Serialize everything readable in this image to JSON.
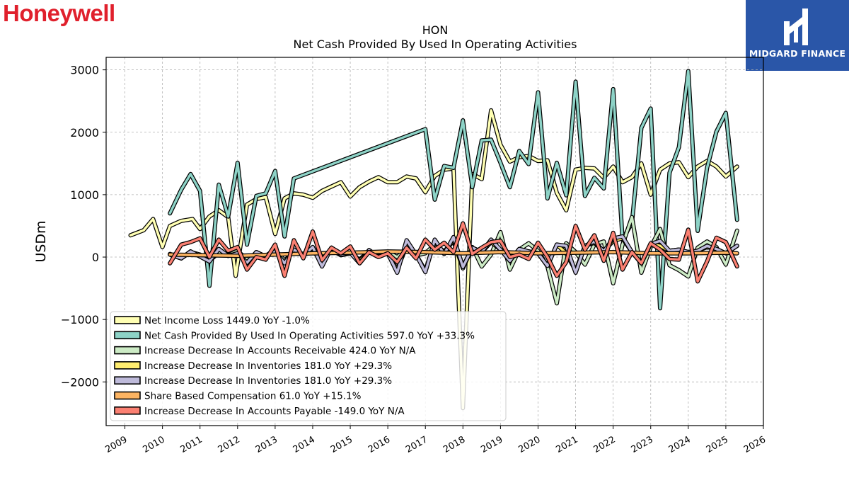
{
  "brand": {
    "name": "Honeywell"
  },
  "logo": {
    "text": "MIDGARD FINANCE",
    "color": "#2a56a8"
  },
  "chart_data": {
    "type": "line",
    "title": "HON",
    "subtitle": "Net Cash Provided By Used In Operating Activities",
    "ylabel": "USDm",
    "xlabel": "",
    "ylim": [
      -2700,
      3200
    ],
    "xlim": [
      2008.5,
      2026.0
    ],
    "yticks": [
      3000,
      2000,
      1000,
      0,
      -1000,
      -2000
    ],
    "ytick_labels": [
      "3000",
      "2000",
      "1000",
      "0",
      "−1000",
      "−2000"
    ],
    "xticks": [
      2009,
      2010,
      2011,
      2012,
      2013,
      2014,
      2015,
      2016,
      2017,
      2018,
      2019,
      2020,
      2021,
      2022,
      2023,
      2024,
      2025,
      2026
    ],
    "xtick_labels": [
      "2009",
      "2010",
      "2011",
      "2012",
      "2013",
      "2014",
      "2015",
      "2016",
      "2017",
      "2018",
      "2019",
      "2020",
      "2021",
      "2022",
      "2023",
      "2024",
      "2025",
      "2026"
    ],
    "grid": true,
    "legend_position": "lower-left",
    "series": [
      {
        "name": "Net Income Loss",
        "legend_label": "Net Income Loss  1449.0 YoY -1.0%",
        "color": "#ffffb3",
        "x": [
          2009.15,
          2009.5,
          2009.75,
          2010.0,
          2010.2,
          2010.5,
          2010.8,
          2011.0,
          2011.25,
          2011.5,
          2011.75,
          2011.95,
          2012.25,
          2012.5,
          2012.75,
          2013.0,
          2013.25,
          2013.5,
          2013.75,
          2014.0,
          2014.25,
          2014.5,
          2014.75,
          2015.0,
          2015.25,
          2015.5,
          2015.75,
          2016.0,
          2016.25,
          2016.5,
          2016.75,
          2017.0,
          2017.25,
          2017.5,
          2017.75,
          2018.0,
          2018.25,
          2018.5,
          2018.75,
          2019.0,
          2019.25,
          2019.5,
          2019.75,
          2020.0,
          2020.25,
          2020.5,
          2020.75,
          2021.0,
          2021.25,
          2021.5,
          2021.75,
          2022.0,
          2022.25,
          2022.5,
          2022.75,
          2023.0,
          2023.25,
          2023.5,
          2023.75,
          2024.0,
          2024.25,
          2024.5,
          2024.75,
          2025.0,
          2025.3
        ],
        "y": [
          350,
          430,
          610,
          160,
          500,
          580,
          610,
          450,
          650,
          750,
          640,
          -300,
          840,
          930,
          960,
          370,
          940,
          1020,
          1000,
          950,
          1060,
          1130,
          1200,
          970,
          1120,
          1210,
          1280,
          1200,
          1200,
          1290,
          1260,
          1040,
          1300,
          1400,
          1420,
          -2420,
          1330,
          1250,
          2350,
          1800,
          1530,
          1600,
          1620,
          1540,
          1550,
          1030,
          750,
          1400,
          1430,
          1420,
          1270,
          1450,
          1200,
          1280,
          1500,
          1000,
          1400,
          1500,
          1520,
          1280,
          1450,
          1540,
          1450,
          1290,
          1449
        ]
      },
      {
        "name": "Net Cash Provided By Used In Operating Activities",
        "legend_label": "Net Cash Provided By Used In Operating Activities  597.0 YoY +33.3%",
        "color": "#8dd3c7",
        "x": [
          2010.2,
          2010.5,
          2010.75,
          2011.0,
          2011.25,
          2011.5,
          2011.75,
          2012.0,
          2012.25,
          2012.5,
          2012.75,
          2013.0,
          2013.25,
          2013.5,
          2017.0,
          2017.25,
          2017.5,
          2017.75,
          2018.0,
          2018.25,
          2018.5,
          2018.75,
          2019.0,
          2019.25,
          2019.5,
          2019.75,
          2020.0,
          2020.25,
          2020.5,
          2020.75,
          2021.0,
          2021.25,
          2021.5,
          2021.75,
          2022.0,
          2022.25,
          2022.5,
          2022.75,
          2023.0,
          2023.25,
          2023.5,
          2023.75,
          2024.0,
          2024.25,
          2024.5,
          2024.75,
          2025.0,
          2025.3
        ],
        "y": [
          700,
          1080,
          1330,
          1060,
          -460,
          1160,
          650,
          1510,
          200,
          980,
          1020,
          1380,
          330,
          1260,
          2050,
          920,
          1460,
          1430,
          2190,
          1120,
          1870,
          1880,
          1510,
          1120,
          1700,
          1490,
          2640,
          940,
          1510,
          990,
          2810,
          980,
          1270,
          1100,
          2690,
          280,
          550,
          2070,
          2380,
          -820,
          1350,
          1760,
          2980,
          420,
          1430,
          2010,
          2310,
          597
        ]
      },
      {
        "name": "Increase Decrease In Accounts Receivable",
        "legend_label": "Increase Decrease In Accounts Receivable  424.0 YoY N/A",
        "color": "#ccebc5",
        "x": [
          2010.2,
          2010.5,
          2010.75,
          2011.0,
          2011.25,
          2011.5,
          2011.75,
          2012.0,
          2012.25,
          2012.5,
          2012.75,
          2013.0,
          2013.25,
          2013.5,
          2013.75,
          2014.0,
          2014.25,
          2014.5,
          2014.75,
          2015.0,
          2015.25,
          2015.5,
          2015.75,
          2016.0,
          2016.25,
          2016.5,
          2016.75,
          2017.0,
          2017.25,
          2017.5,
          2017.75,
          2018.0,
          2018.25,
          2018.5,
          2018.75,
          2019.0,
          2019.25,
          2019.5,
          2019.75,
          2020.0,
          2020.25,
          2020.5,
          2020.75,
          2021.0,
          2021.25,
          2021.5,
          2021.75,
          2022.0,
          2022.25,
          2022.5,
          2022.75,
          2023.0,
          2023.25,
          2023.5,
          2023.75,
          2024.0,
          2024.25,
          2024.5,
          2024.75,
          2025.0,
          2025.3
        ],
        "y": [
          50,
          -20,
          80,
          40,
          -60,
          70,
          30,
          100,
          -40,
          60,
          20,
          120,
          -60,
          90,
          40,
          80,
          -20,
          110,
          30,
          60,
          -40,
          100,
          20,
          80,
          0,
          120,
          30,
          60,
          200,
          90,
          260,
          -180,
          160,
          -150,
          40,
          400,
          -200,
          120,
          220,
          100,
          -150,
          -740,
          220,
          80,
          -120,
          200,
          250,
          -420,
          200,
          640,
          -250,
          160,
          450,
          -130,
          -210,
          -310,
          150,
          250,
          160,
          -120,
          424
        ]
      },
      {
        "name": "Increase Decrease In Inventories",
        "legend_label": "Increase Decrease In Inventories  181.0 YoY +29.3%",
        "color": "#ffed6f",
        "x": [
          2010.2,
          2010.5,
          2010.75,
          2011.0,
          2011.25,
          2011.5,
          2011.75,
          2012.0,
          2012.25,
          2012.5,
          2012.75,
          2013.0,
          2013.25,
          2013.5,
          2013.75,
          2014.0,
          2014.25,
          2014.5,
          2014.75,
          2015.0,
          2015.25,
          2015.5,
          2015.75,
          2016.0,
          2016.25,
          2016.5,
          2016.75,
          2017.0,
          2017.25,
          2017.5,
          2017.75,
          2018.0,
          2018.25,
          2018.5,
          2018.75,
          2019.0,
          2019.25,
          2019.5,
          2019.75,
          2020.0,
          2020.25,
          2020.5,
          2020.75,
          2021.0,
          2021.25,
          2021.5,
          2021.75,
          2022.0,
          2022.25,
          2022.5,
          2022.75,
          2023.0,
          2023.25,
          2023.5,
          2023.75,
          2024.0,
          2024.25,
          2024.5,
          2024.75,
          2025.0,
          2025.3
        ],
        "y": [
          40,
          -20,
          90,
          10,
          -70,
          130,
          20,
          60,
          -90,
          80,
          10,
          90,
          -100,
          120,
          20,
          160,
          -120,
          150,
          40,
          70,
          -60,
          110,
          10,
          60,
          -200,
          180,
          40,
          -220,
          260,
          50,
          280,
          -150,
          150,
          80,
          240,
          120,
          -60,
          130,
          90,
          60,
          -140,
          200,
          60,
          -220,
          180,
          230,
          90,
          260,
          300,
          80,
          -100,
          210,
          180,
          100,
          120,
          80,
          100,
          160,
          130,
          60,
          181
        ]
      },
      {
        "name": "Increase Decrease In Inventories",
        "legend_label": "Increase Decrease In Inventories  181.0 YoY +29.3%",
        "color": "#bebada",
        "x": [
          2010.2,
          2010.5,
          2010.75,
          2011.0,
          2011.25,
          2011.5,
          2011.75,
          2012.0,
          2012.25,
          2012.5,
          2012.75,
          2013.0,
          2013.25,
          2013.5,
          2013.75,
          2014.0,
          2014.25,
          2014.5,
          2014.75,
          2015.0,
          2015.25,
          2015.5,
          2015.75,
          2016.0,
          2016.25,
          2016.5,
          2016.75,
          2017.0,
          2017.25,
          2017.5,
          2017.75,
          2018.0,
          2018.25,
          2018.5,
          2018.75,
          2019.0,
          2019.25,
          2019.5,
          2019.75,
          2020.0,
          2020.25,
          2020.5,
          2020.75,
          2021.0,
          2021.25,
          2021.5,
          2021.75,
          2022.0,
          2022.25,
          2022.5,
          2022.75,
          2023.0,
          2023.25,
          2023.5,
          2023.75,
          2024.0,
          2024.25,
          2024.5,
          2024.75,
          2025.0,
          2025.3
        ],
        "y": [
          40,
          -20,
          90,
          10,
          -70,
          130,
          20,
          60,
          -90,
          80,
          10,
          90,
          -100,
          120,
          20,
          160,
          -150,
          150,
          40,
          70,
          -100,
          110,
          10,
          60,
          -250,
          270,
          40,
          -240,
          280,
          50,
          320,
          -160,
          150,
          80,
          280,
          120,
          -60,
          130,
          90,
          60,
          -140,
          200,
          180,
          -250,
          180,
          250,
          90,
          300,
          330,
          80,
          -100,
          210,
          260,
          100,
          120,
          80,
          100,
          180,
          130,
          60,
          181
        ]
      },
      {
        "name": "Share Based Compensation",
        "legend_label": "Share Based Compensation  61.0 YoY +15.1%",
        "color": "#fdb462",
        "x": [
          2010.2,
          2011.0,
          2012.0,
          2013.0,
          2014.0,
          2015.0,
          2016.0,
          2017.0,
          2018.0,
          2019.0,
          2020.0,
          2021.0,
          2022.0,
          2023.0,
          2024.0,
          2025.0,
          2025.3
        ],
        "y": [
          40,
          30,
          20,
          40,
          60,
          70,
          90,
          80,
          60,
          80,
          60,
          70,
          80,
          60,
          60,
          70,
          61
        ]
      },
      {
        "name": "Increase Decrease In Accounts Payable",
        "legend_label": "Increase Decrease In Accounts Payable  -149.0 YoY N/A",
        "color": "#fb8072",
        "x": [
          2010.2,
          2010.5,
          2010.75,
          2011.0,
          2011.25,
          2011.5,
          2011.75,
          2012.0,
          2012.25,
          2012.5,
          2012.75,
          2013.0,
          2013.25,
          2013.5,
          2013.75,
          2014.0,
          2014.25,
          2014.5,
          2014.75,
          2015.0,
          2015.25,
          2015.5,
          2015.75,
          2016.0,
          2016.25,
          2016.5,
          2016.75,
          2017.0,
          2017.25,
          2017.5,
          2017.75,
          2018.0,
          2018.25,
          2018.5,
          2018.75,
          2019.0,
          2019.25,
          2019.5,
          2019.75,
          2020.0,
          2020.25,
          2020.5,
          2020.75,
          2021.0,
          2021.25,
          2021.5,
          2021.75,
          2022.0,
          2022.25,
          2022.5,
          2022.75,
          2023.0,
          2023.25,
          2023.5,
          2023.75,
          2024.0,
          2024.25,
          2024.5,
          2024.75,
          2025.0,
          2025.3
        ],
        "y": [
          -100,
          200,
          240,
          300,
          0,
          280,
          100,
          160,
          -200,
          0,
          -40,
          200,
          -300,
          270,
          -20,
          410,
          -50,
          150,
          60,
          170,
          -100,
          80,
          0,
          60,
          -80,
          150,
          -20,
          280,
          120,
          230,
          80,
          540,
          50,
          150,
          240,
          260,
          0,
          40,
          -30,
          230,
          0,
          -300,
          -80,
          500,
          120,
          350,
          -60,
          390,
          -200,
          80,
          -100,
          220,
          120,
          -30,
          -40,
          440,
          -390,
          -70,
          310,
          240,
          -149
        ]
      }
    ]
  }
}
